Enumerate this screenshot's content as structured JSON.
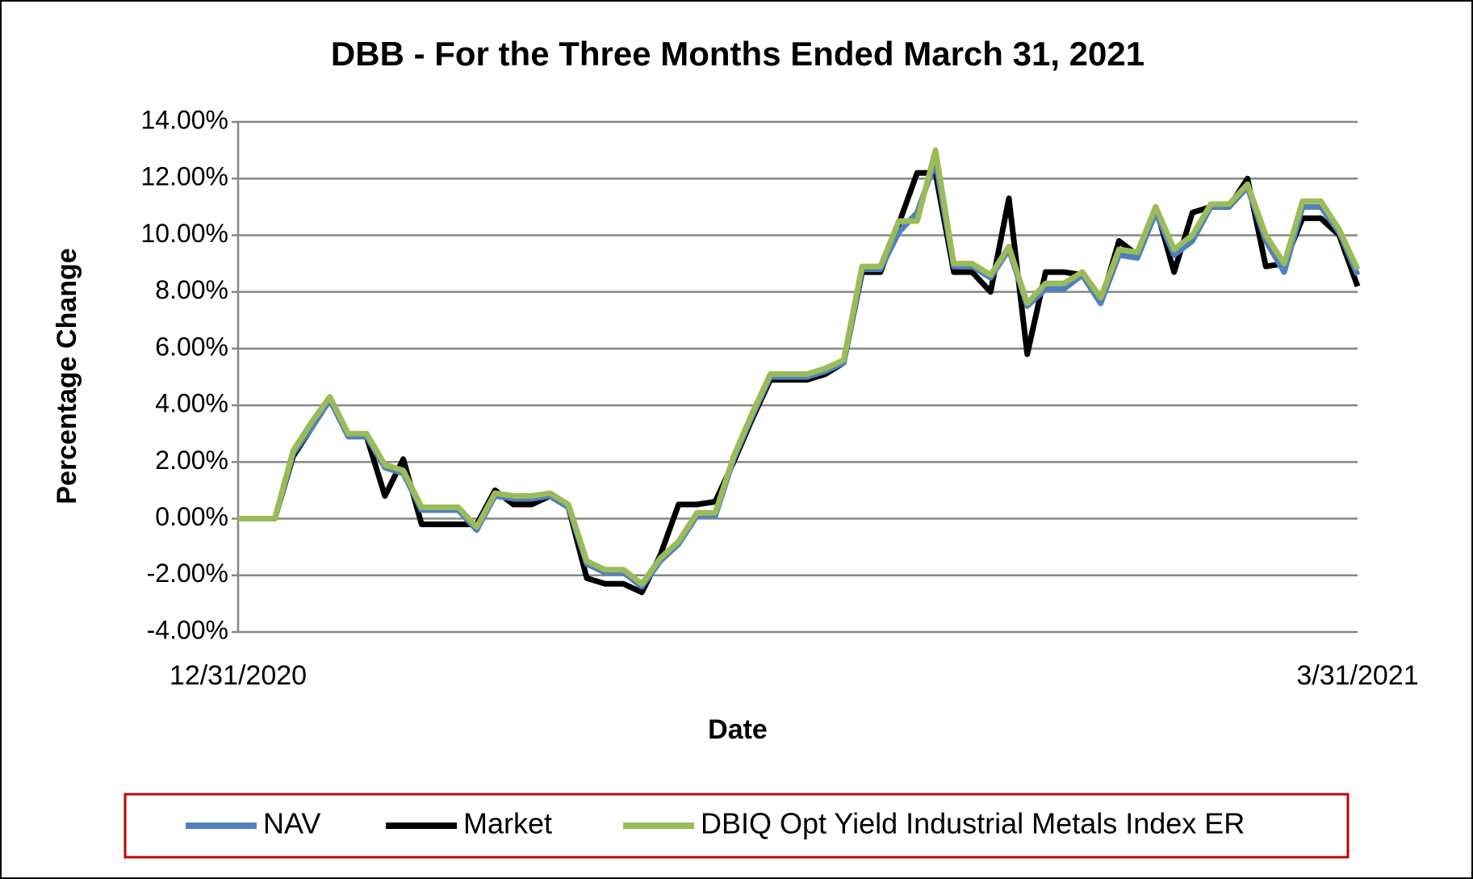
{
  "chart_data": {
    "type": "line",
    "title": "DBB - For the Three Months Ended March 31, 2021",
    "x_label": "Date",
    "y_label": "Percentage Change",
    "categories": [
      "12/31/2020",
      null,
      null,
      null,
      null,
      null,
      null,
      null,
      null,
      null,
      null,
      null,
      null,
      null,
      null,
      null,
      null,
      null,
      null,
      null,
      null,
      null,
      null,
      null,
      null,
      null,
      null,
      null,
      null,
      null,
      null,
      null,
      null,
      null,
      null,
      null,
      null,
      null,
      null,
      null,
      null,
      null,
      null,
      null,
      null,
      null,
      null,
      null,
      null,
      null,
      null,
      null,
      null,
      null,
      null,
      null,
      null,
      null,
      null,
      null,
      null,
      "3/31/2021"
    ],
    "series": [
      {
        "name": "NAV",
        "color": "#4f81bd",
        "values": [
          0,
          0,
          0,
          2.3,
          3.2,
          4.2,
          2.9,
          2.9,
          1.8,
          1.6,
          0.3,
          0.3,
          0.3,
          -0.4,
          0.8,
          0.7,
          0.7,
          0.8,
          0.4,
          -1.6,
          -1.9,
          -1.9,
          -2.4,
          -1.5,
          -0.9,
          0.1,
          0.1,
          2.1,
          3.6,
          5.0,
          5.0,
          5.0,
          5.2,
          5.5,
          8.8,
          8.8,
          10.1,
          10.8,
          12.6,
          8.9,
          8.9,
          8.5,
          9.5,
          7.5,
          8.1,
          8.1,
          8.6,
          7.6,
          9.3,
          9.2,
          10.8,
          9.3,
          9.8,
          11.0,
          11.0,
          11.7,
          9.8,
          8.7,
          11.0,
          11.0,
          10.1,
          8.6
        ]
      },
      {
        "name": "Market",
        "color": "#000000",
        "values": [
          0,
          0,
          0,
          2.2,
          3.2,
          4.2,
          2.9,
          2.9,
          0.8,
          2.1,
          -0.2,
          -0.2,
          -0.2,
          -0.2,
          1.0,
          0.5,
          0.5,
          0.8,
          0.4,
          -2.1,
          -2.3,
          -2.3,
          -2.6,
          -1.3,
          0.5,
          0.5,
          0.6,
          2.0,
          3.5,
          4.9,
          4.9,
          4.9,
          5.1,
          5.5,
          8.7,
          8.7,
          10.4,
          12.2,
          12.2,
          8.7,
          8.7,
          8.0,
          11.3,
          5.8,
          8.7,
          8.7,
          8.6,
          7.6,
          9.8,
          9.3,
          11.0,
          8.7,
          10.8,
          11.0,
          11.0,
          12.0,
          8.9,
          9.0,
          10.6,
          10.6,
          10.0,
          8.2
        ]
      },
      {
        "name": "DBIQ Opt Yield Industrial Metals Index ER",
        "color": "#9bbb59",
        "values": [
          0,
          0,
          0,
          2.4,
          3.4,
          4.3,
          3.0,
          3.0,
          1.9,
          1.7,
          0.4,
          0.4,
          0.4,
          -0.3,
          0.9,
          0.8,
          0.8,
          0.9,
          0.5,
          -1.5,
          -1.8,
          -1.8,
          -2.3,
          -1.4,
          -0.8,
          0.2,
          0.2,
          2.2,
          3.7,
          5.1,
          5.1,
          5.1,
          5.3,
          5.6,
          8.9,
          8.9,
          10.5,
          10.5,
          13.0,
          9.0,
          9.0,
          8.6,
          9.6,
          7.6,
          8.3,
          8.3,
          8.7,
          7.8,
          9.5,
          9.4,
          11.0,
          9.5,
          10.0,
          11.1,
          11.1,
          11.8,
          10.0,
          9.0,
          11.2,
          11.2,
          10.2,
          8.8
        ]
      }
    ],
    "ylim": [
      -4,
      14
    ],
    "yticks": [
      {
        "value": -4,
        "label": "-4.00%"
      },
      {
        "value": -2,
        "label": "-2.00%"
      },
      {
        "value": 0,
        "label": "0.00%"
      },
      {
        "value": 2,
        "label": "2.00%"
      },
      {
        "value": 4,
        "label": "4.00%"
      },
      {
        "value": 6,
        "label": "6.00%"
      },
      {
        "value": 8,
        "label": "8.00%"
      },
      {
        "value": 10,
        "label": "10.00%"
      },
      {
        "value": 12,
        "label": "12.00%"
      },
      {
        "value": 14,
        "label": "14.00%"
      }
    ],
    "grid": true,
    "legend": "bottom"
  }
}
